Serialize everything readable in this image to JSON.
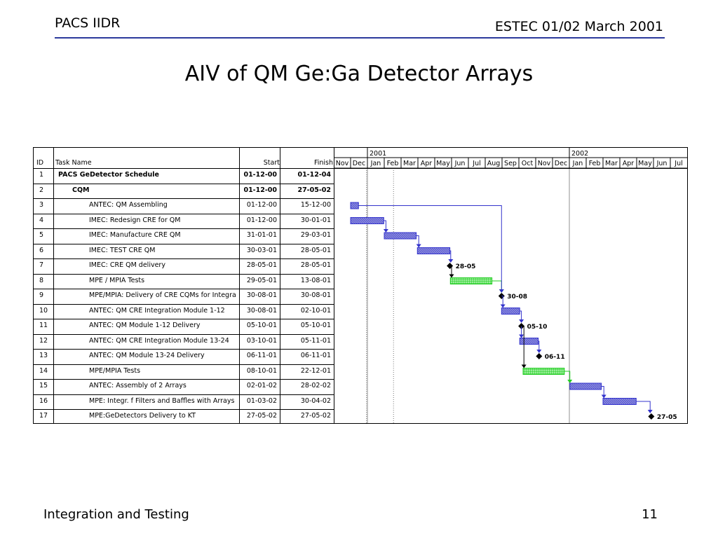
{
  "header": {
    "left": "PACS IIDR",
    "right": "ESTEC 01/02 March 2001"
  },
  "title": "AIV of QM Ge:Ga Detector Arrays",
  "footer": {
    "left": "Integration and Testing",
    "page": "11"
  },
  "table": {
    "columns": {
      "id": "ID",
      "name": "Task Name",
      "start": "Start",
      "finish": "Finish"
    },
    "years": [
      "2001",
      "2002"
    ],
    "months": [
      "Nov",
      "Dec",
      "Jan",
      "Feb",
      "Mar",
      "Apr",
      "May",
      "Jun",
      "Jul",
      "Aug",
      "Sep",
      "Oct",
      "Nov",
      "Dec",
      "Jan",
      "Feb",
      "Mar",
      "Apr",
      "May",
      "Jun",
      "Jul"
    ],
    "rows": [
      {
        "id": "1",
        "name": "PACS GeDetector Schedule",
        "start": "01-12-00",
        "finish": "01-12-04",
        "bold": true,
        "indent": 0
      },
      {
        "id": "2",
        "name": "CQM",
        "start": "01-12-00",
        "finish": "27-05-02",
        "bold": true,
        "indent": 1
      },
      {
        "id": "3",
        "name": "ANTEC: QM Assembling",
        "start": "01-12-00",
        "finish": "15-12-00",
        "bold": false,
        "indent": 2
      },
      {
        "id": "4",
        "name": "IMEC: Redesign CRE for QM",
        "start": "01-12-00",
        "finish": "30-01-01",
        "bold": false,
        "indent": 2
      },
      {
        "id": "5",
        "name": "IMEC: Manufacture CRE QM",
        "start": "31-01-01",
        "finish": "29-03-01",
        "bold": false,
        "indent": 2
      },
      {
        "id": "6",
        "name": "IMEC: TEST CRE QM",
        "start": "30-03-01",
        "finish": "28-05-01",
        "bold": false,
        "indent": 2
      },
      {
        "id": "7",
        "name": "IMEC: CRE QM delivery",
        "start": "28-05-01",
        "finish": "28-05-01",
        "bold": false,
        "indent": 2
      },
      {
        "id": "8",
        "name": "MPE / MPIA Tests",
        "start": "29-05-01",
        "finish": "13-08-01",
        "bold": false,
        "indent": 2
      },
      {
        "id": "9",
        "name": "MPE/MPIA:  Delivery of CRE CQMs for Integrat",
        "start": "30-08-01",
        "finish": "30-08-01",
        "bold": false,
        "indent": 2
      },
      {
        "id": "10",
        "name": "ANTEC: QM CRE Integration Module 1-12",
        "start": "30-08-01",
        "finish": "02-10-01",
        "bold": false,
        "indent": 2
      },
      {
        "id": "11",
        "name": "ANTEC: QM Module 1-12 Delivery",
        "start": "05-10-01",
        "finish": "05-10-01",
        "bold": false,
        "indent": 2
      },
      {
        "id": "12",
        "name": "ANTEC: QM CRE Integration Module 13-24",
        "start": "03-10-01",
        "finish": "05-11-01",
        "bold": false,
        "indent": 2
      },
      {
        "id": "13",
        "name": "ANTEC: QM Module 13-24  Delivery",
        "start": "06-11-01",
        "finish": "06-11-01",
        "bold": false,
        "indent": 2
      },
      {
        "id": "14",
        "name": "MPE/MPIA Tests",
        "start": "08-10-01",
        "finish": "22-12-01",
        "bold": false,
        "indent": 2
      },
      {
        "id": "15",
        "name": "ANTEC: Assembly of 2 Arrays",
        "start": "02-01-02",
        "finish": "28-02-02",
        "bold": false,
        "indent": 2
      },
      {
        "id": "16",
        "name": "MPE: Integr. f Filters and Baffles with Arrays",
        "start": "01-03-02",
        "finish": "30-04-02",
        "bold": false,
        "indent": 2
      },
      {
        "id": "17",
        "name": "MPE:GeDetectors Delivery to KT",
        "start": "27-05-02",
        "finish": "27-05-02",
        "bold": false,
        "indent": 2
      }
    ]
  },
  "gantt": {
    "bars": [
      {
        "row": 3,
        "start": 1.0,
        "end": 1.47,
        "color": "blue"
      },
      {
        "row": 4,
        "start": 1.0,
        "end": 2.97,
        "color": "blue"
      },
      {
        "row": 5,
        "start": 3.0,
        "end": 4.9,
        "color": "blue"
      },
      {
        "row": 6,
        "start": 4.97,
        "end": 6.9,
        "color": "blue"
      },
      {
        "row": 8,
        "start": 6.93,
        "end": 9.4,
        "color": "green"
      },
      {
        "row": 10,
        "start": 9.97,
        "end": 11.05,
        "color": "blue"
      },
      {
        "row": 12,
        "start": 11.05,
        "end": 12.15,
        "color": "blue"
      },
      {
        "row": 14,
        "start": 11.25,
        "end": 13.7,
        "color": "green"
      },
      {
        "row": 15,
        "start": 14.03,
        "end": 15.9,
        "color": "blue"
      },
      {
        "row": 16,
        "start": 16.0,
        "end": 17.97,
        "color": "blue"
      }
    ],
    "milestones": [
      {
        "row": 7,
        "at": 6.9,
        "label": "28-05"
      },
      {
        "row": 9,
        "at": 9.97,
        "label": "30-08"
      },
      {
        "row": 11,
        "at": 11.15,
        "label": "05-10"
      },
      {
        "row": 13,
        "at": 12.2,
        "label": "06-11"
      },
      {
        "row": 17,
        "at": 18.87,
        "label": "27-05"
      }
    ],
    "colors": {
      "blue": "#3333cc",
      "blue_fill": "#8c8cdc",
      "green": "#22cc22",
      "green_fill": "#99ee99",
      "black": "#000000"
    }
  }
}
